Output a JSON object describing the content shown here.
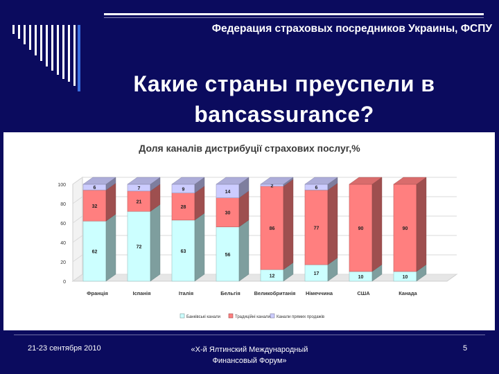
{
  "header": {
    "organization": "Федерация страховых посредников Украины, ФСПУ",
    "title_line1": "Какие страны преуспели в",
    "title_line2": "bancassurance?"
  },
  "chart_data": {
    "type": "bar",
    "stacked": true,
    "title": "Доля каналів дистрибуції страхових послуг,%",
    "categories": [
      "Франція",
      "Іспанія",
      "Італія",
      "Бельгія",
      "Великобританія",
      "Німеччина",
      "США",
      "Канада"
    ],
    "series": [
      {
        "name": "Банківські канали",
        "values": [
          62,
          72,
          63,
          56,
          12,
          17,
          10,
          10
        ],
        "color": "#ccffff"
      },
      {
        "name": "Традиційні канали",
        "values": [
          32,
          21,
          28,
          30,
          86,
          77,
          90,
          90
        ],
        "color": "#ff7f7f"
      },
      {
        "name": "Канали прямих продажів",
        "values": [
          6,
          7,
          9,
          14,
          2,
          6,
          0,
          0
        ],
        "color": "#ccccff"
      }
    ],
    "yticks": [
      0,
      20,
      40,
      60,
      80,
      100
    ],
    "ylim": [
      0,
      100
    ],
    "legend_position": "bottom",
    "grid": true
  },
  "footer": {
    "date": "21-23 сентября 2010",
    "event_line1": "«Х-й Ялтинский Международный",
    "event_line2": "Финансовый Форум»",
    "page_number": "5"
  }
}
